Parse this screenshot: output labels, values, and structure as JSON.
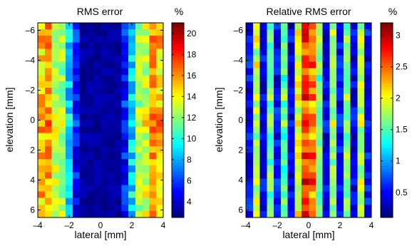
{
  "chart_data": [
    {
      "type": "heatmap",
      "title": "RMS error",
      "xlabel": "lateral [mm]",
      "ylabel": "elevation [mm]",
      "xlim": [
        -4,
        4
      ],
      "ylim": [
        -6.5,
        6.5
      ],
      "y_reversed": true,
      "xticks": [
        -4,
        -2,
        0,
        2,
        4
      ],
      "yticks": [
        -6,
        -4,
        -2,
        0,
        2,
        4,
        6
      ],
      "grid_shape": [
        30,
        18
      ],
      "colorbar": {
        "label": "%",
        "range": [
          2.5,
          21
        ],
        "ticks": [
          4,
          6,
          8,
          10,
          12,
          14,
          16,
          18,
          20
        ],
        "colormap": "jet"
      },
      "column_profile": [
        17,
        18,
        15,
        14,
        10,
        6,
        3,
        3,
        3,
        3,
        3,
        3,
        6,
        10,
        14,
        15,
        18,
        17
      ],
      "row_profile": [
        15,
        14,
        16,
        15,
        14,
        14,
        15,
        14,
        15,
        16,
        14,
        15,
        15,
        16,
        17,
        19,
        17,
        15,
        14,
        15,
        16,
        14,
        15,
        16,
        14,
        15,
        16,
        14,
        15,
        16
      ]
    },
    {
      "type": "heatmap",
      "title": "Relative RMS error",
      "xlabel": "lateral [mm]",
      "ylabel": "elevation [mm]",
      "xlim": [
        -4,
        4
      ],
      "ylim": [
        -6.5,
        6.5
      ],
      "y_reversed": true,
      "xticks": [
        -4,
        -2,
        0,
        2,
        4
      ],
      "yticks": [
        -6,
        -4,
        -2,
        0,
        2,
        4,
        6
      ],
      "grid_shape": [
        30,
        18
      ],
      "colorbar": {
        "label": "%",
        "range": [
          0.1,
          3.2
        ],
        "ticks": [
          0.5,
          1,
          1.5,
          2,
          2.5,
          3
        ],
        "colormap": "jet"
      },
      "column_profile": [
        0.5,
        1.8,
        0.4,
        1.6,
        0.5,
        1.5,
        0.4,
        1.9,
        2.6,
        2.4,
        1.6,
        0.4,
        1.7,
        0.5,
        1.6,
        0.4,
        1.8,
        0.5
      ],
      "row_profile": [
        1.0,
        1.05,
        1.1,
        1.0,
        0.95,
        1.05,
        1.1,
        1.0,
        0.95,
        1.05,
        1.0,
        1.1,
        0.95,
        1.0,
        1.05,
        1.1,
        1.0,
        0.95,
        1.05,
        1.0,
        1.1,
        0.95,
        1.0,
        1.05,
        1.1,
        1.0,
        0.95,
        1.05,
        1.0,
        1.1
      ]
    }
  ]
}
